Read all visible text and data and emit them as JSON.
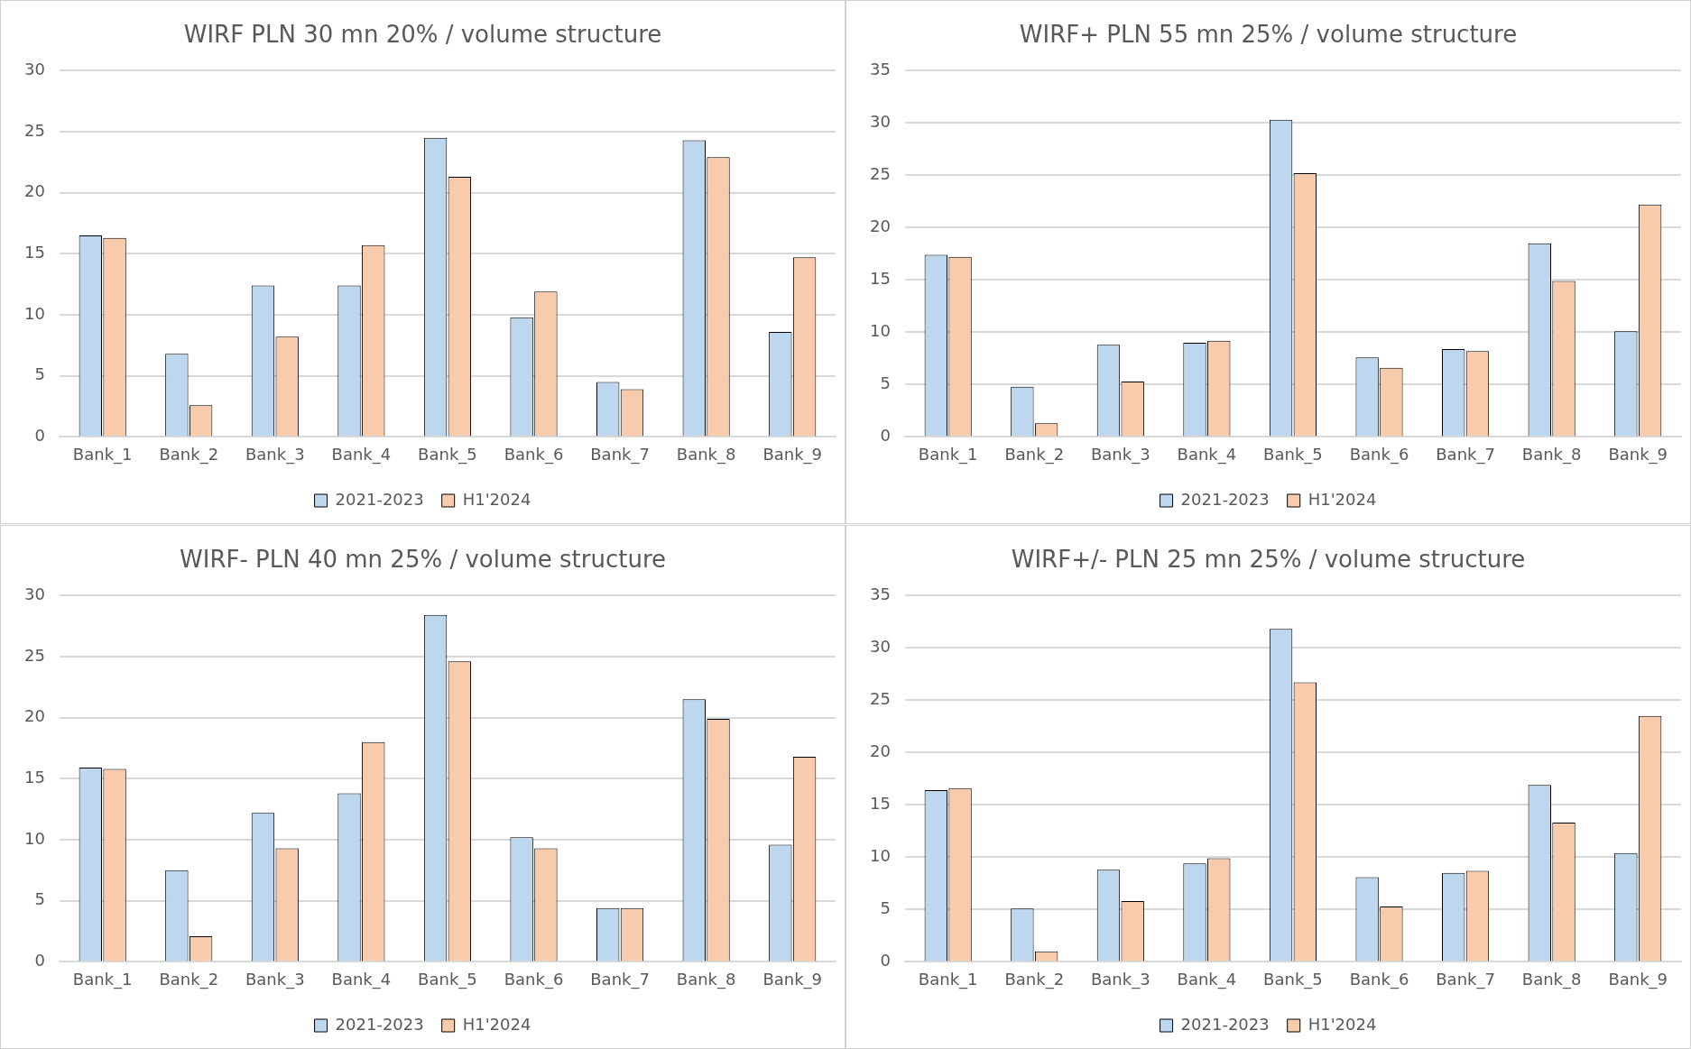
{
  "chart_data": [
    {
      "type": "bar",
      "title": "WIRF PLN 30 mn 20% / volume structure",
      "categories": [
        "Bank_1",
        "Bank_2",
        "Bank_3",
        "Bank_4",
        "Bank_5",
        "Bank_6",
        "Bank_7",
        "Bank_8",
        "Bank_9"
      ],
      "series": [
        {
          "name": "2021-2023",
          "color": "#bdd7ee",
          "values": [
            16.5,
            6.8,
            12.4,
            12.4,
            24.5,
            9.8,
            4.5,
            24.3,
            8.6
          ]
        },
        {
          "name": "H1'2024",
          "color": "#f8cbad",
          "values": [
            16.3,
            2.6,
            8.2,
            15.7,
            21.3,
            11.9,
            3.9,
            22.9,
            14.7
          ]
        }
      ],
      "ylim": [
        0,
        30
      ],
      "yticks": [
        0,
        5,
        10,
        15,
        20,
        25,
        30
      ],
      "grid": "y",
      "legend": "bottom"
    },
    {
      "type": "bar",
      "title": "WIRF+ PLN 55 mn 25% / volume structure",
      "categories": [
        "Bank_1",
        "Bank_2",
        "Bank_3",
        "Bank_4",
        "Bank_5",
        "Bank_6",
        "Bank_7",
        "Bank_8",
        "Bank_9"
      ],
      "series": [
        {
          "name": "2021-2023",
          "color": "#bdd7ee",
          "values": [
            17.4,
            4.8,
            8.8,
            9.0,
            30.3,
            7.6,
            8.4,
            18.5,
            10.1
          ]
        },
        {
          "name": "H1'2024",
          "color": "#f8cbad",
          "values": [
            17.2,
            1.3,
            5.3,
            9.2,
            25.2,
            6.6,
            8.2,
            14.9,
            22.2
          ]
        }
      ],
      "ylim": [
        0,
        35
      ],
      "yticks": [
        0,
        5,
        10,
        15,
        20,
        25,
        30,
        35
      ],
      "grid": "y",
      "legend": "bottom"
    },
    {
      "type": "bar",
      "title": "WIRF- PLN 40 mn 25% / volume structure",
      "categories": [
        "Bank_1",
        "Bank_2",
        "Bank_3",
        "Bank_4",
        "Bank_5",
        "Bank_6",
        "Bank_7",
        "Bank_8",
        "Bank_9"
      ],
      "series": [
        {
          "name": "2021-2023",
          "color": "#bdd7ee",
          "values": [
            15.9,
            7.5,
            12.2,
            13.8,
            28.4,
            10.2,
            4.4,
            21.5,
            9.6
          ]
        },
        {
          "name": "H1'2024",
          "color": "#f8cbad",
          "values": [
            15.8,
            2.1,
            9.3,
            18.0,
            24.6,
            9.3,
            4.4,
            19.9,
            16.8
          ]
        }
      ],
      "ylim": [
        0,
        30
      ],
      "yticks": [
        0,
        5,
        10,
        15,
        20,
        25,
        30
      ],
      "grid": "y",
      "legend": "bottom"
    },
    {
      "type": "bar",
      "title": "WIRF+/- PLN 25 mn 25% / volume structure",
      "categories": [
        "Bank_1",
        "Bank_2",
        "Bank_3",
        "Bank_4",
        "Bank_5",
        "Bank_6",
        "Bank_7",
        "Bank_8",
        "Bank_9"
      ],
      "series": [
        {
          "name": "2021-2023",
          "color": "#bdd7ee",
          "values": [
            16.4,
            5.1,
            8.8,
            9.4,
            31.8,
            8.1,
            8.5,
            16.9,
            10.4
          ]
        },
        {
          "name": "H1'2024",
          "color": "#f8cbad",
          "values": [
            16.6,
            1.0,
            5.8,
            9.9,
            26.7,
            5.3,
            8.7,
            13.3,
            23.5
          ]
        }
      ],
      "ylim": [
        0,
        35
      ],
      "yticks": [
        0,
        5,
        10,
        15,
        20,
        25,
        30,
        35
      ],
      "grid": "y",
      "legend": "bottom"
    }
  ]
}
